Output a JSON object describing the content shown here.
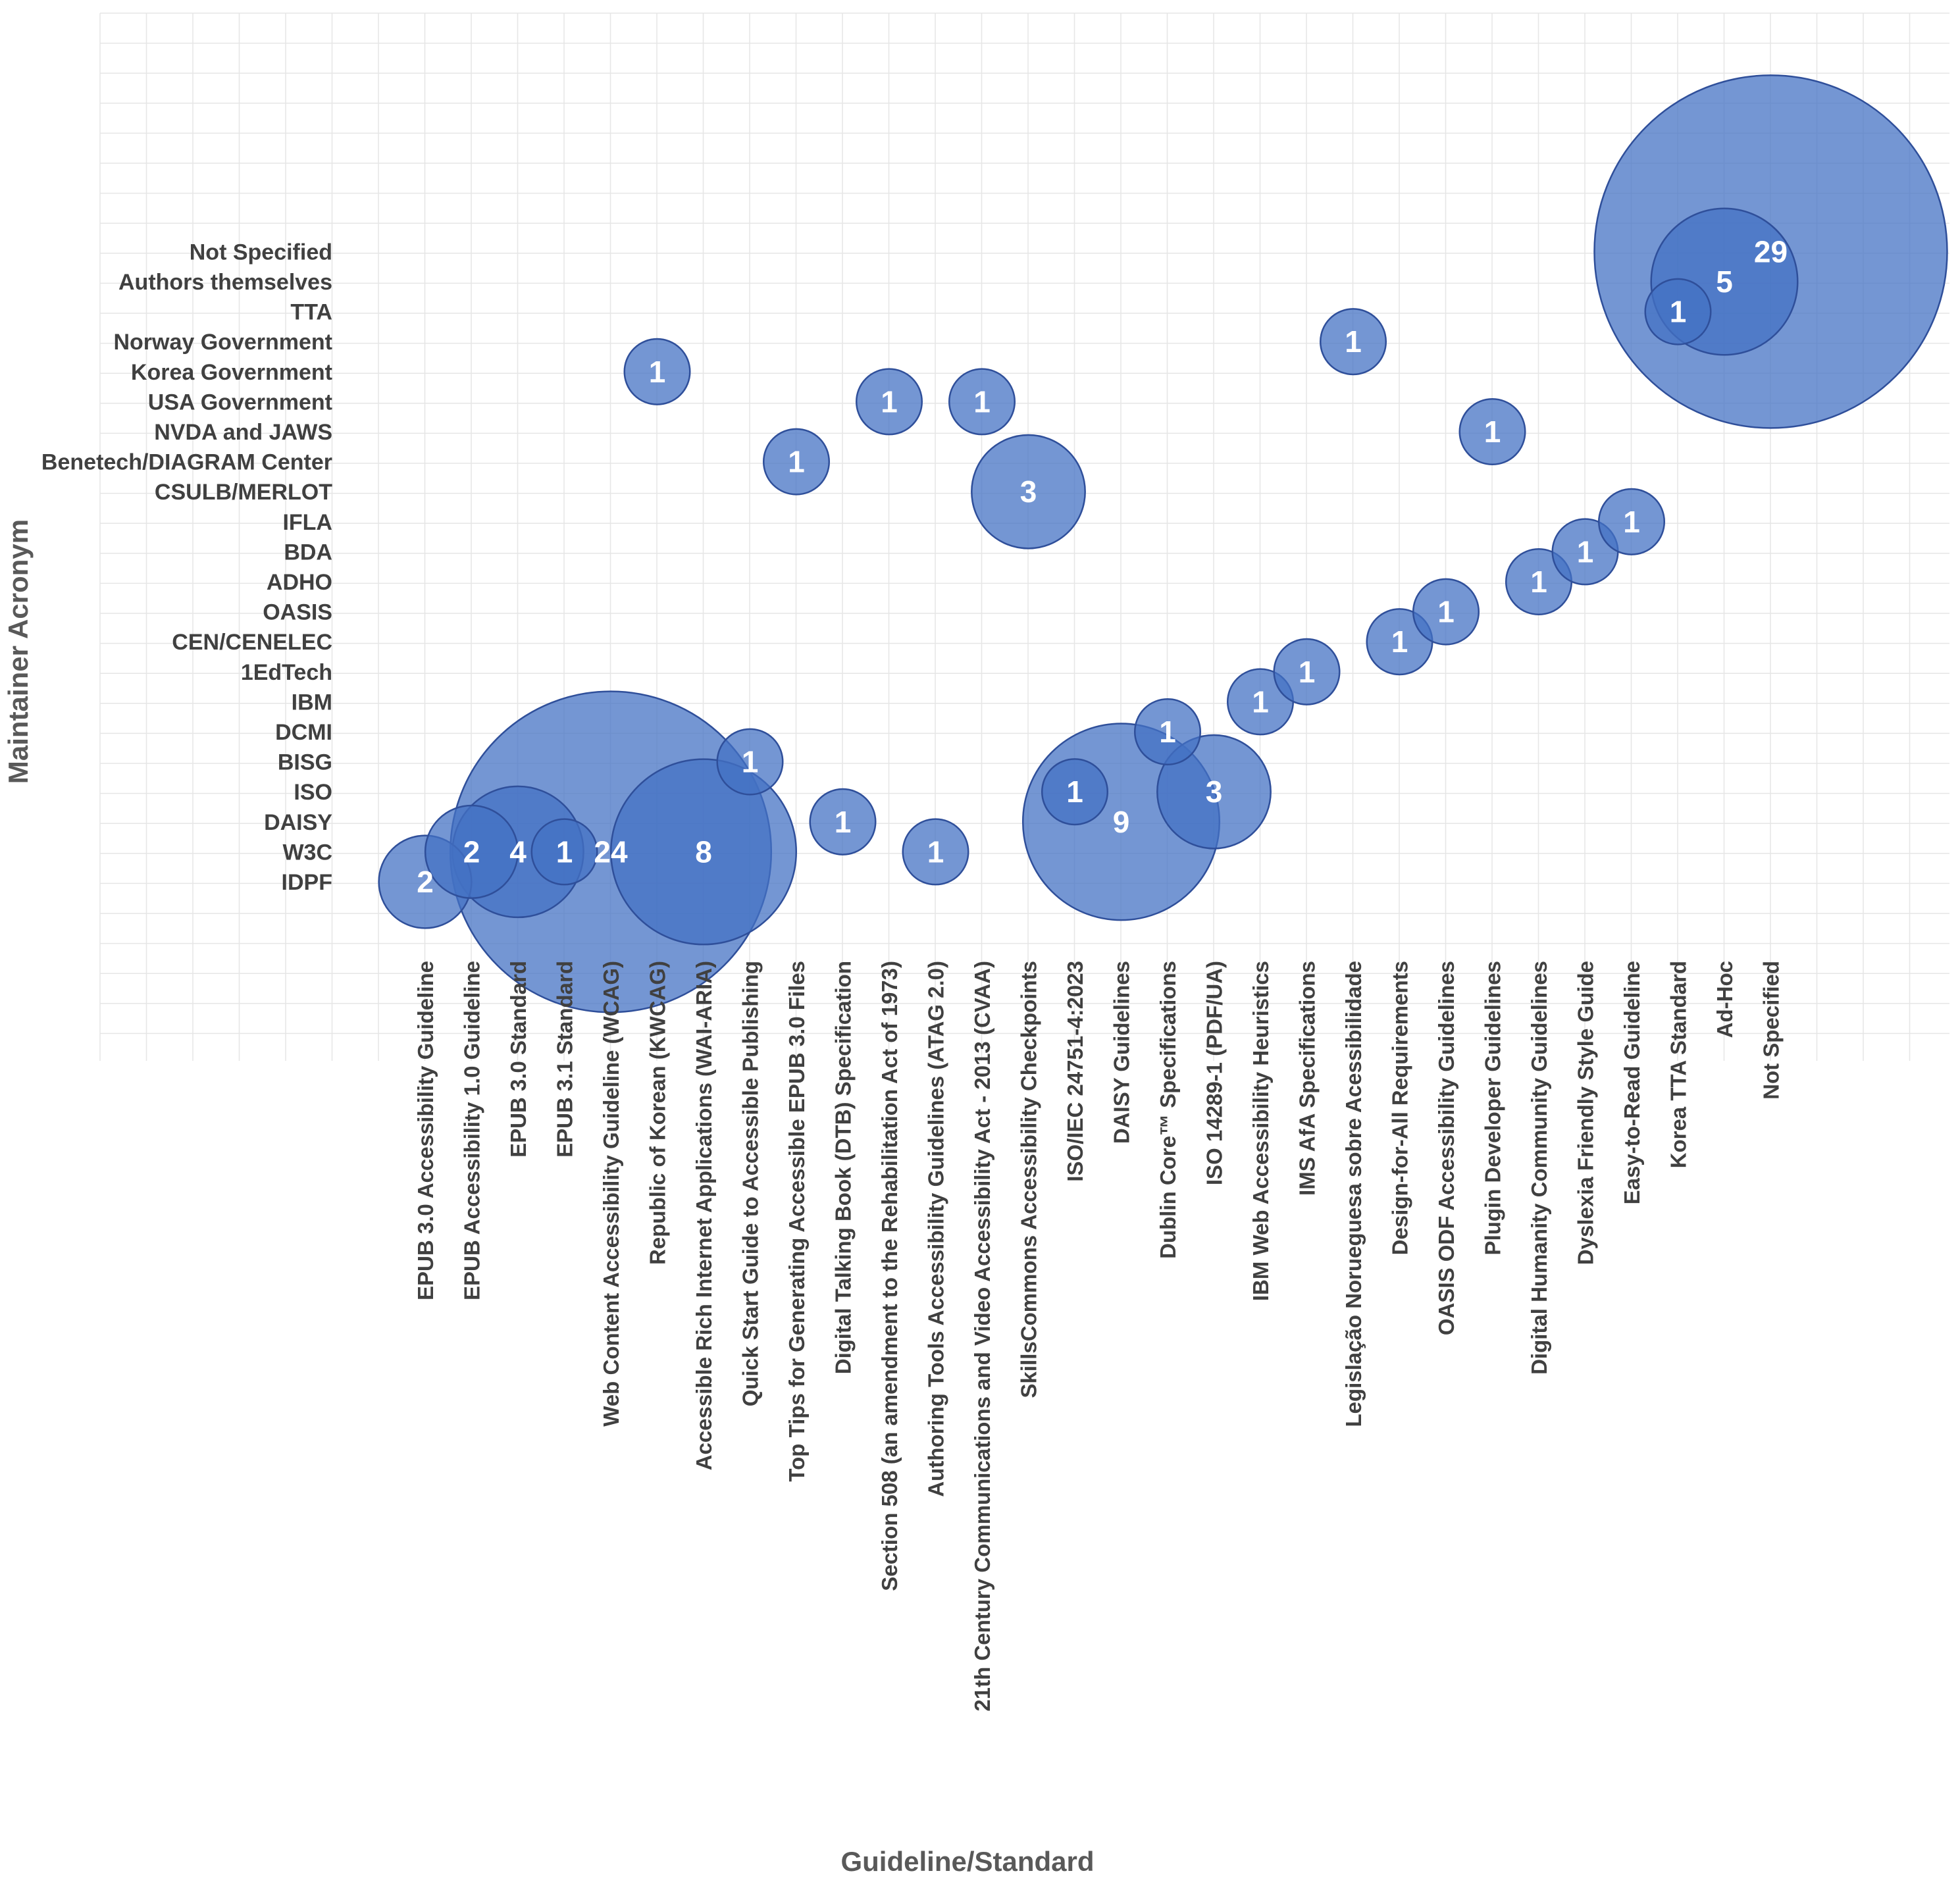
{
  "chart_data": {
    "type": "bubble",
    "xlabel": "Guideline/Standard",
    "ylabel": "Maintainer Acronym",
    "x_categories": [
      "EPUB 3.0 Accessibility Guideline",
      "EPUB Accessibility 1.0 Guideline",
      "EPUB 3.0 Standard",
      "EPUB 3.1 Standard",
      "Web Content Accessibility Guideline (WCAG)",
      "Republic of Korean (KWCAG)",
      "Accessible Rich Internet Applications (WAI-ARIA)",
      "Quick Start Guide to Accessible Publishing",
      "Top Tips for Generating Accessible EPUB 3.0 Files",
      "Digital Talking Book (DTB) Specification",
      "Section 508 (an amendment to the Rehabilitation Act of 1973)",
      "Authoring Tools Accessibility Guidelines (ATAG 2.0)",
      "21th Century Communications and Video Accessibility Act - 2013 (CVAA)",
      "SkillsCommons Accessibility Checkpoints",
      "ISO/IEC 24751-4:2023",
      "DAISY Guidelines",
      "Dublin Core™  Specifications",
      "ISO 14289-1 (PDF/UA)",
      "IBM Web Accessibility Heuristics",
      "IMS AfA Specifications",
      "Legislação Norueguesa sobre Acessibilidade",
      "Design-for-All Requirements",
      "OASIS ODF Accessibility Guidelines",
      "Plugin Developer Guidelines",
      "Digital Humanity Community Guidelines",
      "Dyslexia Friendly Style Guide",
      "Easy-to-Read Guideline",
      "Korea TTA Standard",
      "Ad-Hoc",
      "Not Specified"
    ],
    "y_categories": [
      "IDPF",
      "W3C",
      "DAISY",
      "ISO",
      "BISG",
      "DCMI",
      "IBM",
      "1EdTech",
      "CEN/CENELEC",
      "OASIS",
      "ADHO",
      "BDA",
      "IFLA",
      "CSULB/MERLOT",
      "Benetech/DIAGRAM Center",
      "NVDA and JAWS",
      "USA Government",
      "Korea Government",
      "Norway Government",
      "TTA",
      "Authors themselves",
      "Not Specified"
    ],
    "points": [
      {
        "x": "EPUB 3.0 Accessibility Guideline",
        "y": "IDPF",
        "value": 2
      },
      {
        "x": "EPUB Accessibility 1.0 Guideline",
        "y": "W3C",
        "value": 2
      },
      {
        "x": "EPUB 3.0 Standard",
        "y": "W3C",
        "value": 4
      },
      {
        "x": "EPUB 3.1 Standard",
        "y": "W3C",
        "value": 1
      },
      {
        "x": "Web Content Accessibility Guideline (WCAG)",
        "y": "W3C",
        "value": 24
      },
      {
        "x": "Republic of Korean (KWCAG)",
        "y": "Korea Government",
        "value": 1
      },
      {
        "x": "Accessible Rich Internet Applications (WAI-ARIA)",
        "y": "W3C",
        "value": 8
      },
      {
        "x": "Quick Start Guide to Accessible Publishing",
        "y": "BISG",
        "value": 1
      },
      {
        "x": "Top Tips for Generating Accessible EPUB 3.0 Files",
        "y": "Benetech/DIAGRAM Center",
        "value": 1
      },
      {
        "x": "Digital Talking Book (DTB) Specification",
        "y": "DAISY",
        "value": 1
      },
      {
        "x": "Section 508 (an amendment to the Rehabilitation Act of 1973)",
        "y": "USA Government",
        "value": 1
      },
      {
        "x": "Authoring Tools Accessibility Guidelines (ATAG 2.0)",
        "y": "W3C",
        "value": 1
      },
      {
        "x": "21th Century Communications and Video Accessibility Act - 2013 (CVAA)",
        "y": "USA Government",
        "value": 1
      },
      {
        "x": "SkillsCommons Accessibility Checkpoints",
        "y": "CSULB/MERLOT",
        "value": 3
      },
      {
        "x": "ISO/IEC 24751-4:2023",
        "y": "ISO",
        "value": 1
      },
      {
        "x": "DAISY Guidelines",
        "y": "DAISY",
        "value": 9
      },
      {
        "x": "Dublin Core™  Specifications",
        "y": "DCMI",
        "value": 1
      },
      {
        "x": "ISO 14289-1 (PDF/UA)",
        "y": "ISO",
        "value": 3
      },
      {
        "x": "IBM Web Accessibility Heuristics",
        "y": "IBM",
        "value": 1
      },
      {
        "x": "IMS AfA Specifications",
        "y": "1EdTech",
        "value": 1
      },
      {
        "x": "Legislação Norueguesa sobre Acessibilidade",
        "y": "Norway Government",
        "value": 1
      },
      {
        "x": "Design-for-All Requirements",
        "y": "CEN/CENELEC",
        "value": 1
      },
      {
        "x": "OASIS ODF Accessibility Guidelines",
        "y": "OASIS",
        "value": 1
      },
      {
        "x": "Plugin Developer Guidelines",
        "y": "NVDA and JAWS",
        "value": 1
      },
      {
        "x": "Digital Humanity Community Guidelines",
        "y": "ADHO",
        "value": 1
      },
      {
        "x": "Dyslexia Friendly Style Guide",
        "y": "BDA",
        "value": 1
      },
      {
        "x": "Easy-to-Read Guideline",
        "y": "IFLA",
        "value": 1
      },
      {
        "x": "Korea TTA Standard",
        "y": "TTA",
        "value": 1
      },
      {
        "x": "Ad-Hoc",
        "y": "Authors themselves",
        "value": 5
      },
      {
        "x": "Not Specified",
        "y": "Not Specified",
        "value": 29
      }
    ],
    "grid": true,
    "legend": "none"
  },
  "colors": {
    "bubble_fill": "#4472c4",
    "bubble_stroke": "#2f4f9a",
    "label_color": "#404040",
    "grid_color": "#e6e6e6"
  }
}
